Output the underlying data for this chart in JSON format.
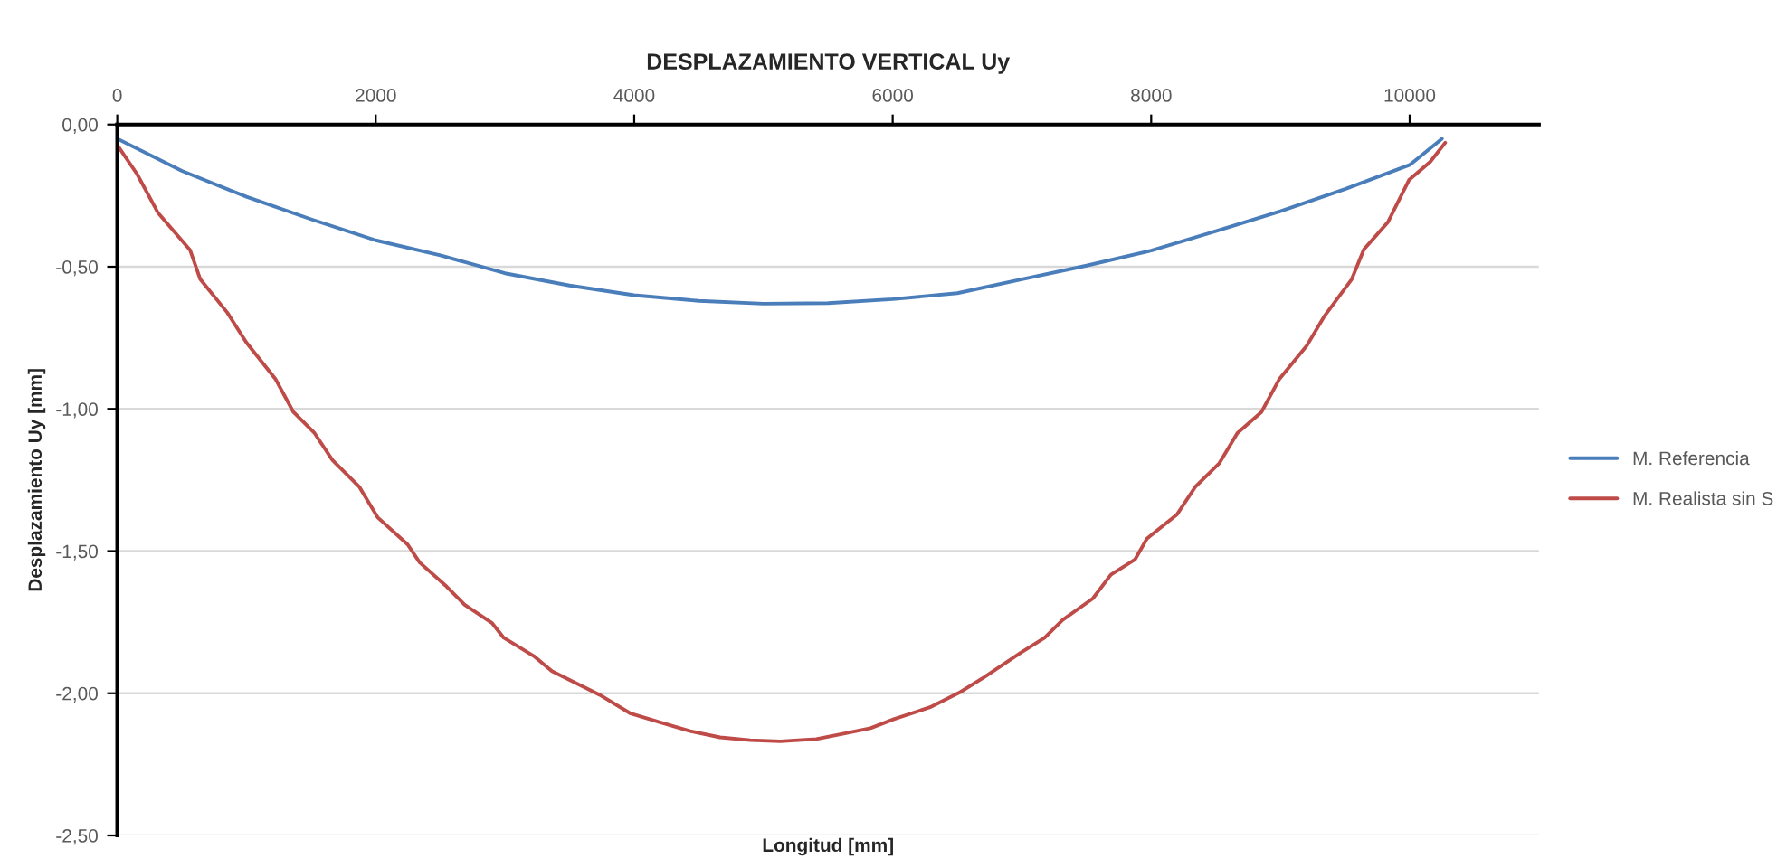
{
  "chart_data": {
    "type": "line",
    "title": "DESPLAZAMIENTO VERTICAL Uy",
    "xlabel": "Longitud [mm]",
    "ylabel": "Desplazamiento Uy [mm]",
    "xlim": [
      0,
      11000
    ],
    "xticks": [
      0,
      2000,
      4000,
      6000,
      8000,
      10000
    ],
    "ylim": [
      -2.5,
      0
    ],
    "yticks": [
      {
        "value": 0,
        "label": "0,00"
      },
      {
        "value": -0.5,
        "label": "-0,50"
      },
      {
        "value": -1,
        "label": "-1,00"
      },
      {
        "value": -1.5,
        "label": "-1,50"
      },
      {
        "value": -2,
        "label": "-2,00"
      },
      {
        "value": -2.5,
        "label": "-2,50"
      }
    ],
    "grid": "y",
    "legend": "right",
    "marker": "none",
    "line_style": "solid",
    "series": [
      {
        "name": "M. Referencia",
        "color": "#4a7ebb",
        "x": [
          0,
          500,
          1000,
          1500,
          2000,
          2500,
          3000,
          3500,
          4000,
          4500,
          5000,
          5500,
          6000,
          6500,
          7000,
          7500,
          8000,
          8500,
          9000,
          9500,
          10000,
          10250
        ],
        "values": [
          -0.05,
          -0.163,
          -0.254,
          -0.333,
          -0.407,
          -0.46,
          -0.523,
          -0.566,
          -0.6,
          -0.62,
          -0.63,
          -0.628,
          -0.614,
          -0.593,
          -0.544,
          -0.496,
          -0.443,
          -0.375,
          -0.305,
          -0.227,
          -0.142,
          -0.05
        ]
      },
      {
        "name": "M. Realista sin S",
        "color": "#be4b48",
        "x": [
          0,
          153,
          316,
          563,
          642,
          851,
          1000,
          1223,
          1363,
          1526,
          1665,
          1874,
          2014,
          2247,
          2340,
          2549,
          2688,
          2898,
          2991,
          3223,
          3363,
          3549,
          3735,
          3967,
          4200,
          4433,
          4665,
          4898,
          5130,
          5409,
          5595,
          5828,
          6009,
          6289,
          6522,
          6709,
          6988,
          7175,
          7315,
          7548,
          7688,
          7874,
          7967,
          8200,
          8340,
          8527,
          8667,
          8853,
          8993,
          9203,
          9343,
          9552,
          9646,
          9832,
          9995,
          10159,
          10275
        ],
        "values": [
          -0.072,
          -0.174,
          -0.311,
          -0.441,
          -0.544,
          -0.661,
          -0.767,
          -0.894,
          -1.011,
          -1.085,
          -1.18,
          -1.275,
          -1.381,
          -1.477,
          -1.54,
          -1.625,
          -1.689,
          -1.752,
          -1.805,
          -1.869,
          -1.922,
          -1.964,
          -2.006,
          -2.07,
          -2.102,
          -2.133,
          -2.155,
          -2.165,
          -2.169,
          -2.161,
          -2.144,
          -2.123,
          -2.091,
          -2.049,
          -1.996,
          -1.943,
          -1.858,
          -1.805,
          -1.742,
          -1.667,
          -1.583,
          -1.53,
          -1.456,
          -1.371,
          -1.275,
          -1.191,
          -1.085,
          -1.011,
          -0.894,
          -0.778,
          -0.672,
          -0.544,
          -0.439,
          -0.343,
          -0.195,
          -0.131,
          -0.064
        ]
      }
    ]
  }
}
